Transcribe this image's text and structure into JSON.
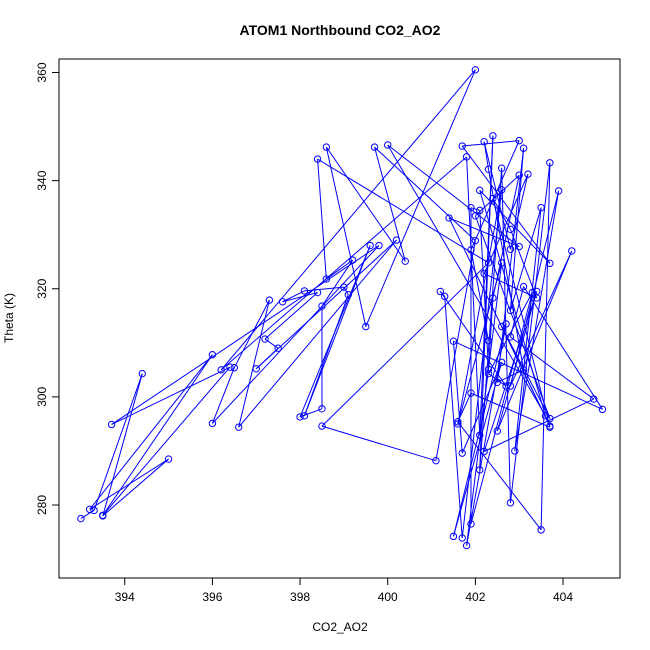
{
  "chart_data": {
    "type": "line",
    "title": "ATOM1 Northbound CO2_AO2",
    "xlabel": "CO2_AO2",
    "ylabel": "Theta (K)",
    "xlim": [
      392.5,
      405.3
    ],
    "ylim": [
      266.5,
      362.5
    ],
    "x_ticks": [
      394,
      396,
      398,
      400,
      402,
      404
    ],
    "y_ticks": [
      280,
      300,
      320,
      340,
      360
    ],
    "x_tick_labels": [
      "394",
      "396",
      "398",
      "400",
      "402",
      "404"
    ],
    "y_tick_labels": [
      "280",
      "300",
      "320",
      "340",
      "360"
    ],
    "grid": false,
    "legend": "none",
    "marker": "open-circle",
    "line_color": "#0000ff",
    "series": [
      {
        "points": [
          [
            393.0,
            277.5
          ],
          [
            393.3,
            279.0
          ],
          [
            394.4,
            304.3
          ],
          [
            393.5,
            278.0
          ],
          [
            395.0,
            288.5
          ],
          [
            393.2,
            279.2
          ],
          [
            396.0,
            307.8
          ],
          [
            393.5,
            278.1
          ],
          [
            396.4,
            305.5
          ],
          [
            393.7,
            294.9
          ],
          [
            399.8,
            328.0
          ],
          [
            396.0,
            295.1
          ],
          [
            396.5,
            305.4
          ],
          [
            397.3,
            317.9
          ],
          [
            396.6,
            294.4
          ],
          [
            400.2,
            329.0
          ],
          [
            397.0,
            305.2
          ],
          [
            397.5,
            309.0
          ],
          [
            397.2,
            310.7
          ],
          [
            398.4,
            319.3
          ],
          [
            397.6,
            317.6
          ],
          [
            398.1,
            319.6
          ],
          [
            399.0,
            320.3
          ],
          [
            399.1,
            318.9
          ],
          [
            398.1,
            296.5
          ],
          [
            399.6,
            328.0
          ],
          [
            398.0,
            296.3
          ],
          [
            398.5,
            297.8
          ],
          [
            398.5,
            316.8
          ],
          [
            399.2,
            325.3
          ],
          [
            398.6,
            321.8
          ],
          [
            398.4,
            344.0
          ],
          [
            402.3,
            324.8
          ],
          [
            398.5,
            294.6
          ],
          [
            401.1,
            288.2
          ],
          [
            402.0,
            328.9
          ],
          [
            399.7,
            346.2
          ],
          [
            400.4,
            325.1
          ],
          [
            398.6,
            346.2
          ],
          [
            399.5,
            313.0
          ],
          [
            402.0,
            360.5
          ],
          [
            396.2,
            305.0
          ],
          [
            401.8,
            344.4
          ],
          [
            402.1,
            292.9
          ],
          [
            402.4,
            348.3
          ],
          [
            402.1,
            286.5
          ],
          [
            402.6,
            342.3
          ],
          [
            402.8,
            280.4
          ],
          [
            403.7,
            343.3
          ],
          [
            403.5,
            275.4
          ],
          [
            401.6,
            295.4
          ],
          [
            401.9,
            300.7
          ],
          [
            403.7,
            294.4
          ],
          [
            402.4,
            336.7
          ],
          [
            402.8,
            331.0
          ],
          [
            403.4,
            318.3
          ],
          [
            402.2,
            322.8
          ],
          [
            403.2,
            341.2
          ],
          [
            402.8,
            327.3
          ],
          [
            402.2,
            347.2
          ],
          [
            402.3,
            342.1
          ],
          [
            403.1,
            305.0
          ],
          [
            402.5,
            302.7
          ],
          [
            403.1,
            346.0
          ],
          [
            402.8,
            316.0
          ],
          [
            403.5,
            335.0
          ],
          [
            402.9,
            290.0
          ],
          [
            403.9,
            338.1
          ],
          [
            402.8,
            302.0
          ],
          [
            404.2,
            327.0
          ],
          [
            402.5,
            293.7
          ],
          [
            403.4,
            319.5
          ],
          [
            402.2,
            289.9
          ],
          [
            404.7,
            299.6
          ],
          [
            402.8,
            311.1
          ],
          [
            403.1,
            320.4
          ],
          [
            404.9,
            297.7
          ],
          [
            401.5,
            310.3
          ],
          [
            401.7,
            289.6
          ],
          [
            402.6,
            306.4
          ],
          [
            401.5,
            274.2
          ],
          [
            402.7,
            313.5
          ],
          [
            401.8,
            272.5
          ],
          [
            402.6,
            324.8
          ],
          [
            401.6,
            295.0
          ],
          [
            402.6,
            338.3
          ],
          [
            401.7,
            273.9
          ],
          [
            401.3,
            318.6
          ],
          [
            401.2,
            319.5
          ],
          [
            402.7,
            302.0
          ],
          [
            402.3,
            304.3
          ],
          [
            403.3,
            319.3
          ],
          [
            401.9,
            276.5
          ],
          [
            401.9,
            335.0
          ],
          [
            402.1,
            334.5
          ],
          [
            402.3,
            305.1
          ],
          [
            402.4,
            318.3
          ],
          [
            403.0,
            341.0
          ],
          [
            402.0,
            333.5
          ],
          [
            403.7,
            296.0
          ],
          [
            402.6,
            313.0
          ],
          [
            403.7,
            294.6
          ],
          [
            401.4,
            333.1
          ],
          [
            403.0,
            327.8
          ],
          [
            400.0,
            346.6
          ],
          [
            403.6,
            296.5
          ],
          [
            402.1,
            338.2
          ],
          [
            403.7,
            324.7
          ],
          [
            401.7,
            346.4
          ],
          [
            403.0,
            347.4
          ],
          [
            401.9,
            327.2
          ],
          [
            402.3,
            310.4
          ]
        ]
      }
    ]
  }
}
